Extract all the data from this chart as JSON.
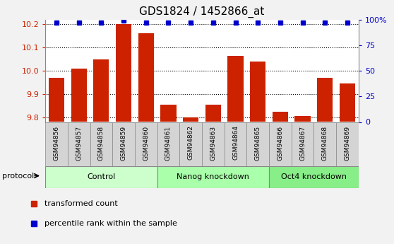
{
  "title": "GDS1824 / 1452866_at",
  "samples": [
    "GSM94856",
    "GSM94857",
    "GSM94858",
    "GSM94859",
    "GSM94860",
    "GSM94861",
    "GSM94862",
    "GSM94863",
    "GSM94864",
    "GSM94865",
    "GSM94866",
    "GSM94867",
    "GSM94868",
    "GSM94869"
  ],
  "transformed_counts": [
    9.97,
    10.01,
    10.05,
    10.2,
    10.16,
    9.855,
    9.8,
    9.855,
    10.065,
    10.04,
    9.825,
    9.805,
    9.97,
    9.945
  ],
  "percentile_ranks": [
    97,
    97,
    97,
    99,
    97,
    97,
    97,
    97,
    97,
    97,
    97,
    97,
    97,
    97
  ],
  "groups": [
    {
      "label": "Control",
      "start": 0,
      "end": 5,
      "color": "#ccffcc"
    },
    {
      "label": "Nanog knockdown",
      "start": 5,
      "end": 10,
      "color": "#aaffaa"
    },
    {
      "label": "Oct4 knockdown",
      "start": 10,
      "end": 14,
      "color": "#88ee88"
    }
  ],
  "bar_color": "#cc2200",
  "dot_color": "#0000cc",
  "ylim_left": [
    9.78,
    10.22
  ],
  "ylim_right": [
    0,
    100
  ],
  "yticks_left": [
    9.8,
    9.9,
    10.0,
    10.1,
    10.2
  ],
  "yticks_right": [
    0,
    25,
    50,
    75,
    100
  ],
  "ytick_labels_right": [
    "0",
    "25",
    "50",
    "75",
    "100%"
  ],
  "plot_bg_color": "#ffffff",
  "label_bg_color": "#d4d4d4",
  "grid_color": "#000000",
  "bar_width": 0.7
}
